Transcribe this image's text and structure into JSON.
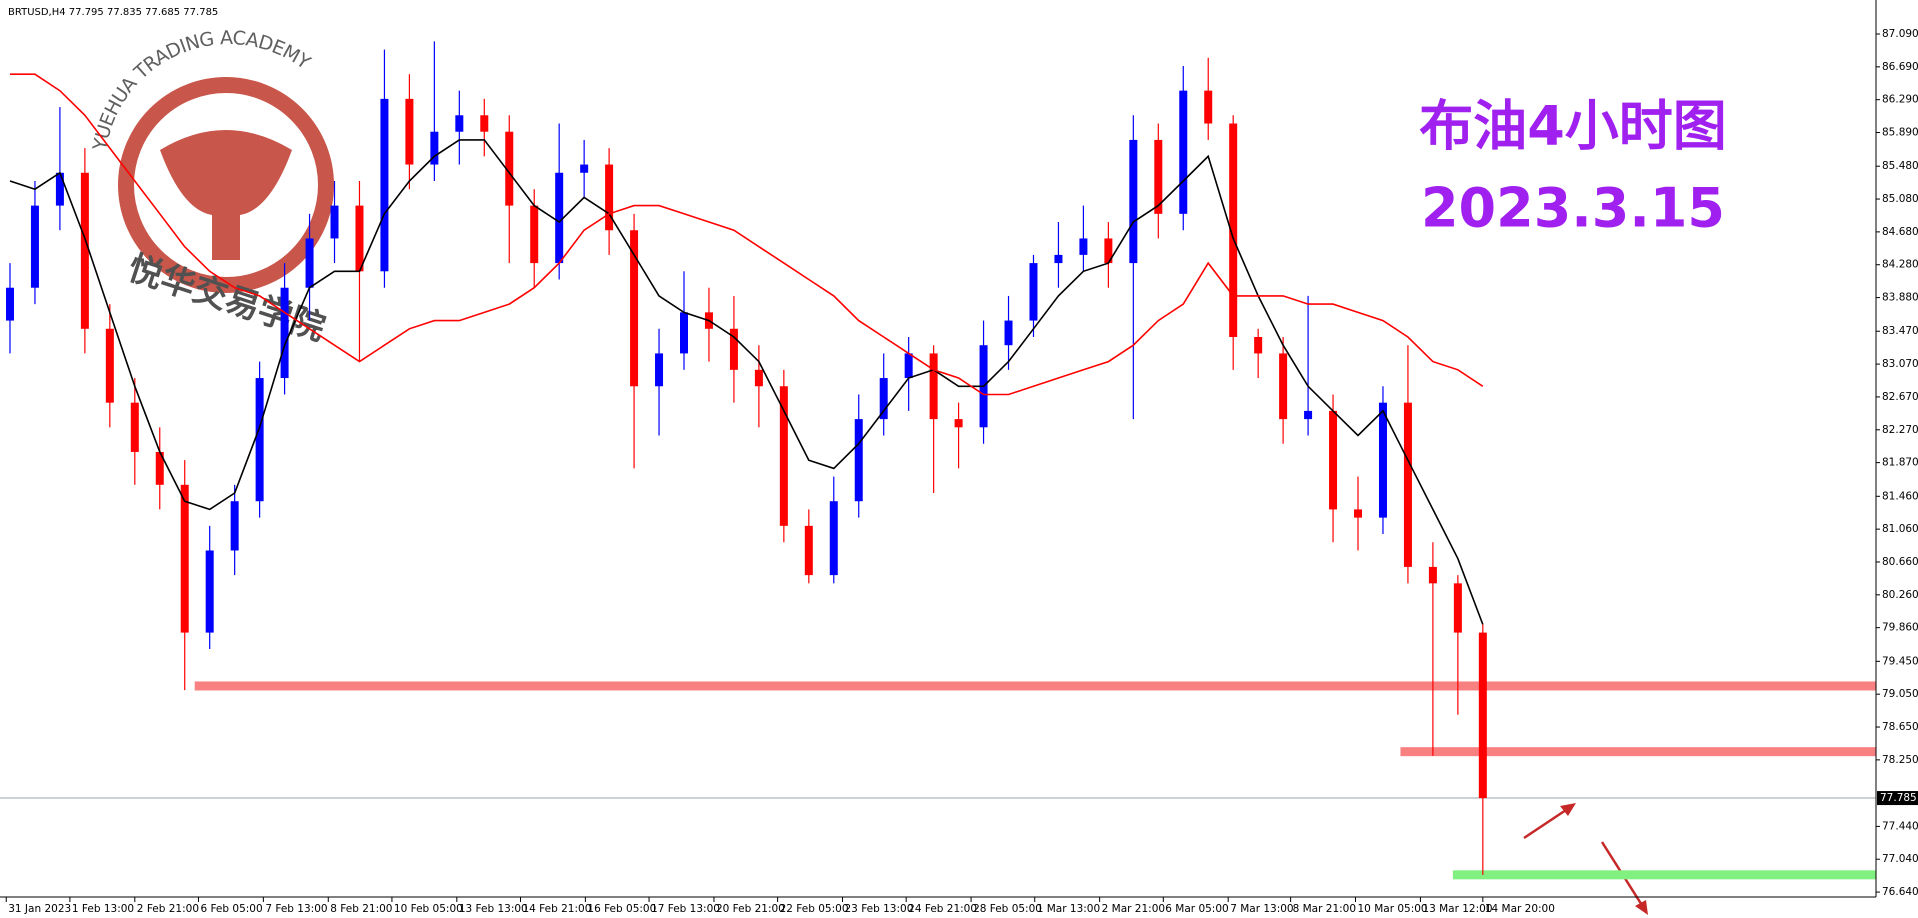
{
  "chart_data": {
    "type": "candlestick",
    "header": "BRTUSD,H4  77.795 77.835 77.685 77.785",
    "title": "布油4小时图",
    "subtitle": "2023.3.15",
    "watermark": [
      "YUEHUA TRADING ACADEMY",
      "悦华交易学院"
    ],
    "up_color": "#0000ff",
    "down_color": "#ff0000",
    "ylim": [
      76.58,
      87.504
    ],
    "xlim": [
      -0.4,
      74.75
    ],
    "yticks": [
      {
        "value": 87.09,
        "label": "87.090"
      },
      {
        "value": 86.69,
        "label": "86.690"
      },
      {
        "value": 86.29,
        "label": "86.290"
      },
      {
        "value": 85.89,
        "label": "85.890"
      },
      {
        "value": 85.48,
        "label": "85.480"
      },
      {
        "value": 85.08,
        "label": "85.080"
      },
      {
        "value": 84.68,
        "label": "84.680"
      },
      {
        "value": 84.28,
        "label": "84.280"
      },
      {
        "value": 83.88,
        "label": "83.880"
      },
      {
        "value": 83.47,
        "label": "83.470"
      },
      {
        "value": 83.07,
        "label": "83.070"
      },
      {
        "value": 82.67,
        "label": "82.670"
      },
      {
        "value": 82.27,
        "label": "82.270"
      },
      {
        "value": 81.87,
        "label": "81.870"
      },
      {
        "value": 81.46,
        "label": "81.460"
      },
      {
        "value": 81.06,
        "label": "81.060"
      },
      {
        "value": 80.66,
        "label": "80.660"
      },
      {
        "value": 80.26,
        "label": "80.260"
      },
      {
        "value": 79.86,
        "label": "79.860"
      },
      {
        "value": 79.45,
        "label": "79.450"
      },
      {
        "value": 79.05,
        "label": "79.050"
      },
      {
        "value": 78.65,
        "label": "78.650"
      },
      {
        "value": 78.25,
        "label": "78.250"
      },
      {
        "value": 77.44,
        "label": "77.440"
      },
      {
        "value": 77.04,
        "label": "77.040"
      },
      {
        "value": 76.64,
        "label": "76.640"
      }
    ],
    "xticks": [
      {
        "value": -0.15,
        "label": "31 Jan 2023"
      },
      {
        "value": 2.4,
        "label": "1 Feb 13:00"
      },
      {
        "value": 5,
        "label": "2 Feb 21:00"
      },
      {
        "value": 7.55,
        "label": "6 Feb 05:00"
      },
      {
        "value": 10.15,
        "label": "7 Feb 13:00"
      },
      {
        "value": 12.75,
        "label": "8 Feb 21:00"
      },
      {
        "value": 15.3,
        "label": "10 Feb 05:00"
      },
      {
        "value": 17.9,
        "label": "13 Feb 13:00"
      },
      {
        "value": 20.45,
        "label": "14 Feb 21:00"
      },
      {
        "value": 23.05,
        "label": "16 Feb 05:00"
      },
      {
        "value": 25.6,
        "label": "17 Feb 13:00"
      },
      {
        "value": 28.2,
        "label": "20 Feb 21:00"
      },
      {
        "value": 30.75,
        "label": "22 Feb 05:00"
      },
      {
        "value": 33.35,
        "label": "23 Feb 13:00"
      },
      {
        "value": 35.9,
        "label": "24 Feb 21:00"
      },
      {
        "value": 38.5,
        "label": "28 Feb 05:00"
      },
      {
        "value": 41.05,
        "label": "1 Mar 13:00"
      },
      {
        "value": 43.65,
        "label": "2 Mar 21:00"
      },
      {
        "value": 46.2,
        "label": "6 Mar 05:00"
      },
      {
        "value": 48.8,
        "label": "7 Mar 13:00"
      },
      {
        "value": 51.3,
        "label": "8 Mar 21:00"
      },
      {
        "value": 53.9,
        "label": "10 Mar 05:00"
      },
      {
        "value": 56.5,
        "label": "13 Mar 12:00"
      },
      {
        "value": 59.0,
        "label": "14 Mar 20:00"
      }
    ],
    "candles": [
      [
        83.6,
        84.3,
        83.2,
        84.0
      ],
      [
        84.0,
        85.3,
        83.8,
        85.0
      ],
      [
        85.0,
        86.2,
        84.7,
        85.4
      ],
      [
        85.4,
        85.7,
        83.2,
        83.5
      ],
      [
        83.5,
        83.8,
        82.3,
        82.6
      ],
      [
        82.6,
        82.9,
        81.6,
        82.0
      ],
      [
        82.0,
        82.3,
        81.3,
        81.6
      ],
      [
        81.6,
        81.9,
        79.1,
        79.8
      ],
      [
        79.8,
        81.1,
        79.6,
        80.8
      ],
      [
        80.8,
        81.6,
        80.5,
        81.4
      ],
      [
        81.4,
        83.1,
        81.2,
        82.9
      ],
      [
        82.9,
        84.3,
        82.7,
        84.0
      ],
      [
        84.0,
        84.9,
        83.6,
        84.6
      ],
      [
        84.6,
        85.3,
        84.3,
        85.0
      ],
      [
        85.0,
        85.3,
        83.1,
        84.2
      ],
      [
        84.2,
        86.9,
        84.0,
        86.3
      ],
      [
        86.3,
        86.6,
        85.2,
        85.5
      ],
      [
        85.5,
        87.0,
        85.3,
        85.9
      ],
      [
        85.9,
        86.4,
        85.5,
        86.1
      ],
      [
        86.1,
        86.3,
        85.6,
        85.9
      ],
      [
        85.9,
        86.1,
        84.3,
        85.0
      ],
      [
        85.0,
        85.2,
        84.0,
        84.3
      ],
      [
        84.3,
        86.0,
        84.1,
        85.4
      ],
      [
        85.4,
        85.8,
        85.1,
        85.5
      ],
      [
        85.5,
        85.7,
        84.4,
        84.7
      ],
      [
        84.7,
        84.9,
        81.8,
        82.8
      ],
      [
        82.8,
        83.5,
        82.2,
        83.2
      ],
      [
        83.2,
        84.2,
        83.0,
        83.7
      ],
      [
        83.7,
        84.0,
        83.1,
        83.5
      ],
      [
        83.5,
        83.9,
        82.6,
        83.0
      ],
      [
        83.0,
        83.3,
        82.3,
        82.8
      ],
      [
        82.8,
        83.0,
        80.9,
        81.1
      ],
      [
        81.1,
        81.3,
        80.4,
        80.5
      ],
      [
        80.5,
        81.7,
        80.4,
        81.4
      ],
      [
        81.4,
        82.7,
        81.2,
        82.4
      ],
      [
        82.4,
        83.2,
        82.2,
        82.9
      ],
      [
        82.9,
        83.4,
        82.5,
        83.2
      ],
      [
        83.2,
        83.3,
        81.5,
        82.4
      ],
      [
        82.4,
        82.6,
        81.8,
        82.3
      ],
      [
        82.3,
        83.6,
        82.1,
        83.3
      ],
      [
        83.3,
        83.9,
        83.0,
        83.6
      ],
      [
        83.6,
        84.4,
        83.4,
        84.3
      ],
      [
        84.3,
        84.8,
        84.0,
        84.4
      ],
      [
        84.4,
        85.0,
        84.2,
        84.6
      ],
      [
        84.6,
        84.8,
        84.0,
        84.3
      ],
      [
        84.3,
        86.1,
        82.4,
        85.8
      ],
      [
        85.8,
        86.0,
        84.6,
        84.9
      ],
      [
        84.9,
        86.7,
        84.7,
        86.4
      ],
      [
        86.4,
        86.8,
        85.8,
        86.0
      ],
      [
        86.0,
        86.1,
        83.0,
        83.4
      ],
      [
        83.4,
        83.5,
        82.9,
        83.2
      ],
      [
        83.2,
        83.4,
        82.1,
        82.4
      ],
      [
        82.4,
        83.9,
        82.2,
        82.5
      ],
      [
        82.5,
        82.7,
        80.9,
        81.3
      ],
      [
        81.3,
        81.7,
        80.8,
        81.2
      ],
      [
        81.2,
        82.8,
        81.0,
        82.6
      ],
      [
        82.6,
        83.3,
        80.4,
        80.6
      ],
      [
        80.6,
        80.9,
        78.3,
        80.4
      ],
      [
        80.4,
        80.5,
        78.8,
        79.8
      ],
      [
        79.8,
        79.9,
        76.85,
        77.785
      ]
    ],
    "ma": [
      {
        "color": "#000000",
        "values": [
          85.3,
          85.2,
          85.4,
          84.6,
          83.7,
          82.8,
          82.0,
          81.4,
          81.3,
          81.5,
          82.3,
          83.3,
          84.0,
          84.2,
          84.2,
          84.9,
          85.3,
          85.6,
          85.8,
          85.8,
          85.4,
          85.0,
          84.8,
          85.1,
          84.9,
          84.4,
          83.9,
          83.7,
          83.6,
          83.4,
          83.1,
          82.5,
          81.9,
          81.8,
          82.1,
          82.5,
          82.9,
          83.0,
          82.8,
          82.8,
          83.1,
          83.5,
          83.9,
          84.2,
          84.3,
          84.8,
          85.0,
          85.3,
          85.6,
          84.6,
          83.9,
          83.3,
          82.8,
          82.5,
          82.2,
          82.5,
          81.9,
          81.3,
          80.7,
          79.9
        ]
      },
      {
        "color": "#ff0000",
        "values": [
          86.6,
          86.6,
          86.4,
          86.1,
          85.7,
          85.3,
          84.9,
          84.5,
          84.2,
          84.0,
          83.9,
          83.7,
          83.5,
          83.3,
          83.1,
          83.3,
          83.5,
          83.6,
          83.6,
          83.7,
          83.8,
          84.0,
          84.3,
          84.7,
          84.9,
          85.0,
          85.0,
          84.9,
          84.8,
          84.7,
          84.5,
          84.3,
          84.1,
          83.9,
          83.6,
          83.4,
          83.2,
          83.0,
          82.9,
          82.7,
          82.7,
          82.8,
          82.9,
          83.0,
          83.1,
          83.3,
          83.6,
          83.8,
          84.3,
          83.9,
          83.9,
          83.9,
          83.8,
          83.8,
          83.7,
          83.6,
          83.4,
          83.1,
          83.0,
          82.8
        ]
      }
    ],
    "levels": [
      {
        "value": 79.15,
        "from": 7.4,
        "color": "#f88080"
      },
      {
        "value": 78.35,
        "from": 55.7,
        "color": "#f88080"
      },
      {
        "value": 76.85,
        "from": 57.8,
        "color": "#80f080"
      }
    ],
    "current": {
      "value": 77.785,
      "label": "77.785"
    }
  }
}
